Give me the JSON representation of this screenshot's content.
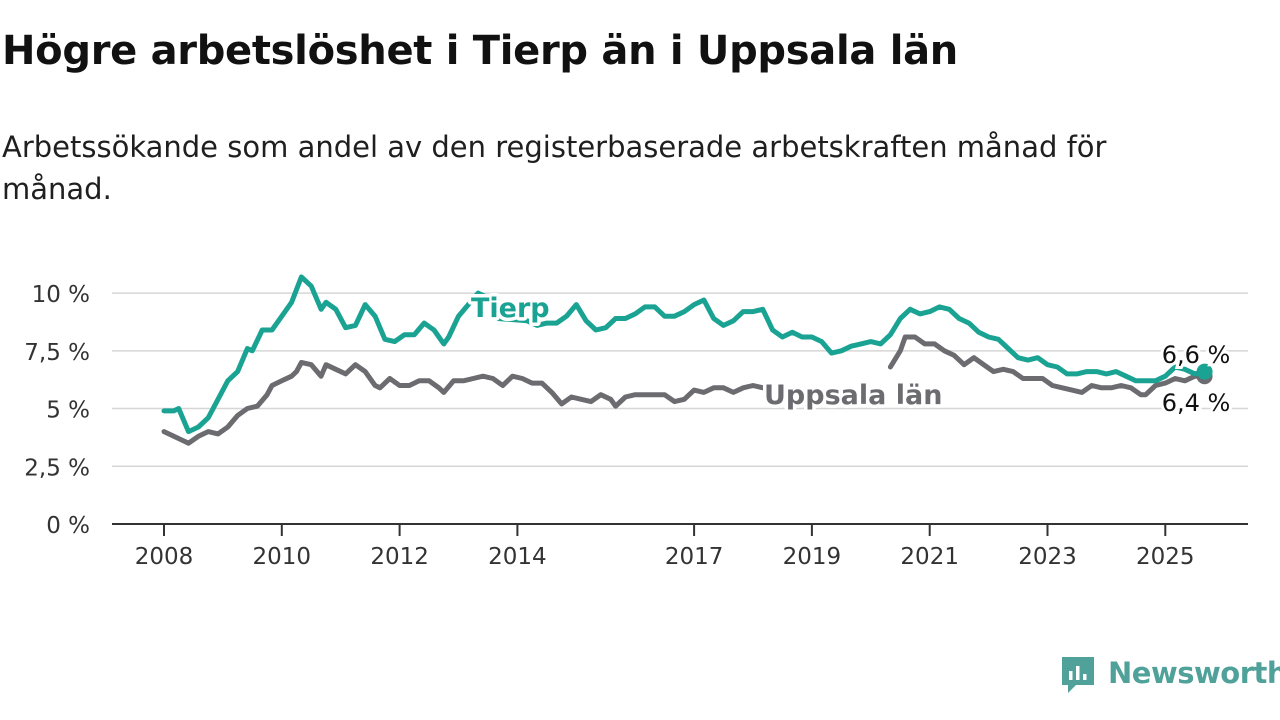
{
  "title": "Högre arbetslöshet i Tierp än i Uppsala län",
  "subtitle": "Arbetssökande som andel av den registerbaserade arbetskraften månad för månad.",
  "brand": {
    "name": "Newsworthy",
    "icon": "newsworthy-chart-icon",
    "color": "#4fa199"
  },
  "chart_data": {
    "type": "line",
    "ylim": [
      0,
      11
    ],
    "xlim": [
      "2008-01",
      "2025-12"
    ],
    "grid": true,
    "legend": "inline labels",
    "y_ticks": [
      {
        "value": 0,
        "label": "0 %"
      },
      {
        "value": 2.5,
        "label": "2,5 %"
      },
      {
        "value": 5,
        "label": "5 %"
      },
      {
        "value": 7.5,
        "label": "7,5 %"
      },
      {
        "value": 10,
        "label": "10 %"
      }
    ],
    "x_ticks": [
      {
        "value": "2008-01",
        "label": "2008"
      },
      {
        "value": "2010-01",
        "label": "2010"
      },
      {
        "value": "2012-01",
        "label": "2012"
      },
      {
        "value": "2014-01",
        "label": "2014"
      },
      {
        "value": "2017-01",
        "label": "2017"
      },
      {
        "value": "2019-01",
        "label": "2019"
      },
      {
        "value": "2021-01",
        "label": "2021"
      },
      {
        "value": "2023-01",
        "label": "2023"
      },
      {
        "value": "2025-01",
        "label": "2025"
      }
    ],
    "series": [
      {
        "name": "Uppsala län",
        "color": "#6b6b70",
        "end_label": "6,4 %",
        "points": [
          [
            "2008-01",
            4.0
          ],
          [
            "2008-03",
            3.8
          ],
          [
            "2008-05",
            3.6
          ],
          [
            "2008-06",
            3.5
          ],
          [
            "2008-08",
            3.8
          ],
          [
            "2008-10",
            4.0
          ],
          [
            "2008-12",
            3.9
          ],
          [
            "2009-02",
            4.2
          ],
          [
            "2009-04",
            4.7
          ],
          [
            "2009-06",
            5.0
          ],
          [
            "2009-08",
            5.1
          ],
          [
            "2009-10",
            5.6
          ],
          [
            "2009-11",
            6.0
          ],
          [
            "2010-01",
            6.2
          ],
          [
            "2010-03",
            6.4
          ],
          [
            "2010-04",
            6.6
          ],
          [
            "2010-05",
            7.0
          ],
          [
            "2010-07",
            6.9
          ],
          [
            "2010-09",
            6.4
          ],
          [
            "2010-10",
            6.9
          ],
          [
            "2010-12",
            6.7
          ],
          [
            "2011-02",
            6.5
          ],
          [
            "2011-04",
            6.9
          ],
          [
            "2011-06",
            6.6
          ],
          [
            "2011-08",
            6.0
          ],
          [
            "2011-09",
            5.9
          ],
          [
            "2011-11",
            6.3
          ],
          [
            "2012-01",
            6.0
          ],
          [
            "2012-03",
            6.0
          ],
          [
            "2012-05",
            6.2
          ],
          [
            "2012-07",
            6.2
          ],
          [
            "2012-09",
            5.9
          ],
          [
            "2012-10",
            5.7
          ],
          [
            "2012-12",
            6.2
          ],
          [
            "2013-02",
            6.2
          ],
          [
            "2013-04",
            6.3
          ],
          [
            "2013-06",
            6.4
          ],
          [
            "2013-08",
            6.3
          ],
          [
            "2013-10",
            6.0
          ],
          [
            "2013-12",
            6.4
          ],
          [
            "2014-02",
            6.3
          ],
          [
            "2014-04",
            6.1
          ],
          [
            "2014-06",
            6.1
          ],
          [
            "2014-08",
            5.7
          ],
          [
            "2014-10",
            5.2
          ],
          [
            "2014-12",
            5.5
          ],
          [
            "2015-02",
            5.4
          ],
          [
            "2015-04",
            5.3
          ],
          [
            "2015-06",
            5.6
          ],
          [
            "2015-08",
            5.4
          ],
          [
            "2015-09",
            5.1
          ],
          [
            "2015-11",
            5.5
          ],
          [
            "2016-01",
            5.6
          ],
          [
            "2016-03",
            5.6
          ],
          [
            "2016-05",
            5.6
          ],
          [
            "2016-07",
            5.6
          ],
          [
            "2016-09",
            5.3
          ],
          [
            "2016-11",
            5.4
          ],
          [
            "2017-01",
            5.8
          ],
          [
            "2017-03",
            5.7
          ],
          [
            "2017-05",
            5.9
          ],
          [
            "2017-07",
            5.9
          ],
          [
            "2017-09",
            5.7
          ],
          [
            "2017-11",
            5.9
          ],
          [
            "2018-01",
            6.0
          ],
          [
            "2018-03",
            5.9
          ],
          [
            "2018-05",
            6.0
          ],
          [
            "2018-07",
            5.8
          ],
          [
            "2020-05",
            6.8
          ],
          [
            "2020-07",
            7.5
          ],
          [
            "2020-08",
            8.1
          ],
          [
            "2020-10",
            8.1
          ],
          [
            "2020-12",
            7.8
          ],
          [
            "2021-02",
            7.8
          ],
          [
            "2021-04",
            7.5
          ],
          [
            "2021-06",
            7.3
          ],
          [
            "2021-08",
            6.9
          ],
          [
            "2021-10",
            7.2
          ],
          [
            "2021-12",
            6.9
          ],
          [
            "2022-02",
            6.6
          ],
          [
            "2022-04",
            6.7
          ],
          [
            "2022-06",
            6.6
          ],
          [
            "2022-08",
            6.3
          ],
          [
            "2022-10",
            6.3
          ],
          [
            "2022-12",
            6.3
          ],
          [
            "2023-02",
            6.0
          ],
          [
            "2023-04",
            5.9
          ],
          [
            "2023-06",
            5.8
          ],
          [
            "2023-08",
            5.7
          ],
          [
            "2023-10",
            6.0
          ],
          [
            "2023-12",
            5.9
          ],
          [
            "2024-02",
            5.9
          ],
          [
            "2024-04",
            6.0
          ],
          [
            "2024-06",
            5.9
          ],
          [
            "2024-08",
            5.6
          ],
          [
            "2024-09",
            5.6
          ],
          [
            "2024-11",
            6.0
          ],
          [
            "2025-01",
            6.1
          ],
          [
            "2025-03",
            6.3
          ],
          [
            "2025-05",
            6.2
          ],
          [
            "2025-07",
            6.4
          ],
          [
            "2025-09",
            6.4
          ]
        ]
      },
      {
        "name": "Tierp",
        "color": "#1aa393",
        "end_label": "6,6 %",
        "points": [
          [
            "2008-01",
            4.9
          ],
          [
            "2008-03",
            4.9
          ],
          [
            "2008-04",
            5.0
          ],
          [
            "2008-06",
            4.0
          ],
          [
            "2008-08",
            4.2
          ],
          [
            "2008-10",
            4.6
          ],
          [
            "2008-12",
            5.4
          ],
          [
            "2009-02",
            6.2
          ],
          [
            "2009-04",
            6.6
          ],
          [
            "2009-06",
            7.6
          ],
          [
            "2009-07",
            7.5
          ],
          [
            "2009-09",
            8.4
          ],
          [
            "2009-11",
            8.4
          ],
          [
            "2010-01",
            9.0
          ],
          [
            "2010-03",
            9.6
          ],
          [
            "2010-05",
            10.7
          ],
          [
            "2010-07",
            10.3
          ],
          [
            "2010-09",
            9.3
          ],
          [
            "2010-10",
            9.6
          ],
          [
            "2010-12",
            9.3
          ],
          [
            "2011-02",
            8.5
          ],
          [
            "2011-04",
            8.6
          ],
          [
            "2011-06",
            9.5
          ],
          [
            "2011-08",
            9.0
          ],
          [
            "2011-10",
            8.0
          ],
          [
            "2011-12",
            7.9
          ],
          [
            "2012-02",
            8.2
          ],
          [
            "2012-04",
            8.2
          ],
          [
            "2012-06",
            8.7
          ],
          [
            "2012-08",
            8.4
          ],
          [
            "2012-10",
            7.8
          ],
          [
            "2012-11",
            8.1
          ],
          [
            "2013-01",
            9.0
          ],
          [
            "2013-03",
            9.5
          ],
          [
            "2013-05",
            10.0
          ],
          [
            "2013-07",
            9.8
          ],
          [
            "2013-09",
            8.9
          ],
          [
            "2014-03",
            8.8
          ],
          [
            "2014-05",
            8.6
          ],
          [
            "2014-07",
            8.7
          ],
          [
            "2014-09",
            8.7
          ],
          [
            "2014-11",
            9.0
          ],
          [
            "2015-01",
            9.5
          ],
          [
            "2015-03",
            8.8
          ],
          [
            "2015-05",
            8.4
          ],
          [
            "2015-07",
            8.5
          ],
          [
            "2015-09",
            8.9
          ],
          [
            "2015-11",
            8.9
          ],
          [
            "2016-01",
            9.1
          ],
          [
            "2016-03",
            9.4
          ],
          [
            "2016-05",
            9.4
          ],
          [
            "2016-07",
            9.0
          ],
          [
            "2016-09",
            9.0
          ],
          [
            "2016-11",
            9.2
          ],
          [
            "2017-01",
            9.5
          ],
          [
            "2017-03",
            9.7
          ],
          [
            "2017-05",
            8.9
          ],
          [
            "2017-07",
            8.6
          ],
          [
            "2017-09",
            8.8
          ],
          [
            "2017-11",
            9.2
          ],
          [
            "2018-01",
            9.2
          ],
          [
            "2018-03",
            9.3
          ],
          [
            "2018-05",
            8.4
          ],
          [
            "2018-07",
            8.1
          ],
          [
            "2018-09",
            8.3
          ],
          [
            "2018-11",
            8.1
          ],
          [
            "2019-01",
            8.1
          ],
          [
            "2019-03",
            7.9
          ],
          [
            "2019-05",
            7.4
          ],
          [
            "2019-07",
            7.5
          ],
          [
            "2019-09",
            7.7
          ],
          [
            "2019-11",
            7.8
          ],
          [
            "2020-01",
            7.9
          ],
          [
            "2020-03",
            7.8
          ],
          [
            "2020-05",
            8.2
          ],
          [
            "2020-07",
            8.9
          ],
          [
            "2020-09",
            9.3
          ],
          [
            "2020-11",
            9.1
          ],
          [
            "2021-01",
            9.2
          ],
          [
            "2021-03",
            9.4
          ],
          [
            "2021-05",
            9.3
          ],
          [
            "2021-07",
            8.9
          ],
          [
            "2021-09",
            8.7
          ],
          [
            "2021-11",
            8.3
          ],
          [
            "2022-01",
            8.1
          ],
          [
            "2022-03",
            8.0
          ],
          [
            "2022-05",
            7.6
          ],
          [
            "2022-07",
            7.2
          ],
          [
            "2022-09",
            7.1
          ],
          [
            "2022-11",
            7.2
          ],
          [
            "2023-01",
            6.9
          ],
          [
            "2023-03",
            6.8
          ],
          [
            "2023-05",
            6.5
          ],
          [
            "2023-07",
            6.5
          ],
          [
            "2023-09",
            6.6
          ],
          [
            "2023-11",
            6.6
          ],
          [
            "2024-01",
            6.5
          ],
          [
            "2024-03",
            6.6
          ],
          [
            "2024-05",
            6.4
          ],
          [
            "2024-07",
            6.2
          ],
          [
            "2024-09",
            6.2
          ],
          [
            "2024-11",
            6.2
          ],
          [
            "2025-01",
            6.4
          ],
          [
            "2025-03",
            6.8
          ],
          [
            "2025-05",
            6.7
          ],
          [
            "2025-07",
            6.5
          ],
          [
            "2025-09",
            6.6
          ]
        ]
      }
    ]
  }
}
